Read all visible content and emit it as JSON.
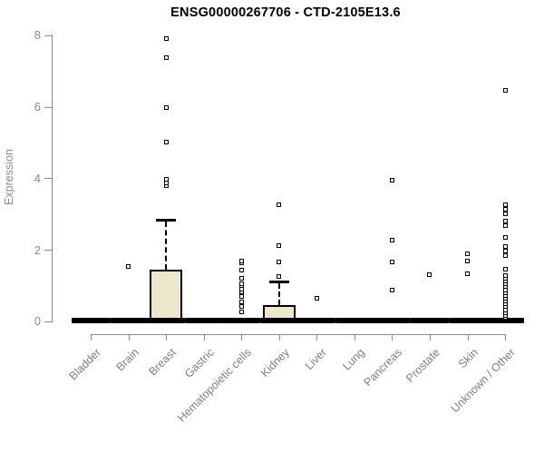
{
  "header": {
    "title": "ENSG00000267706 - CTD-2105E13.6"
  },
  "colors": {
    "box_fill": "#EDE8CC",
    "stroke": "#000000",
    "axis_gray": "#8b8b8b",
    "x_label_gray": "#7f7f7f",
    "background": "#ffffff"
  },
  "chart_data": {
    "type": "boxplot",
    "title": "ENSG00000267706 - CTD-2105E13.6",
    "xlabel": "",
    "ylabel": "Expression",
    "ylim": [
      0,
      8
    ],
    "yticks": [
      0,
      2,
      4,
      6,
      8
    ],
    "grid": false,
    "legend": false,
    "categories": [
      "Bladder",
      "Brain",
      "Breast",
      "Gastric",
      "Hematopoietic cells",
      "Kidney",
      "Liver",
      "Lung",
      "Pancreas",
      "Prostate",
      "Skin",
      "Unknown / Other"
    ],
    "series": [
      {
        "category": "Bladder",
        "q1": 0,
        "median": 0,
        "q3": 0,
        "whisker_low": 0,
        "whisker_high": 0,
        "outliers": []
      },
      {
        "category": "Brain",
        "q1": 0,
        "median": 0,
        "q3": 0,
        "whisker_low": 0,
        "whisker_high": 0,
        "outliers": [
          1.52
        ]
      },
      {
        "category": "Breast",
        "q1": 0,
        "median": 0,
        "q3": 1.45,
        "whisker_low": 0,
        "whisker_high": 2.83,
        "outliers": [
          3.8,
          3.88,
          3.96,
          5.01,
          5.97,
          7.38,
          7.9
        ]
      },
      {
        "category": "Gastric",
        "q1": 0,
        "median": 0,
        "q3": 0,
        "whisker_low": 0,
        "whisker_high": 0,
        "outliers": []
      },
      {
        "category": "Hematopoietic cells",
        "q1": 0,
        "median": 0,
        "q3": 0,
        "whisker_low": 0,
        "whisker_high": 0,
        "outliers": [
          0.27,
          0.4,
          0.55,
          0.69,
          0.82,
          0.9,
          0.99,
          1.05,
          1.2,
          1.43,
          1.63,
          1.68
        ]
      },
      {
        "category": "Kidney",
        "q1": 0,
        "median": 0,
        "q3": 0.44,
        "whisker_low": 0,
        "whisker_high": 1.11,
        "outliers": [
          1.24,
          1.65,
          2.11,
          3.25
        ]
      },
      {
        "category": "Liver",
        "q1": 0,
        "median": 0,
        "q3": 0,
        "whisker_low": 0,
        "whisker_high": 0,
        "outliers": [
          0.65
        ]
      },
      {
        "category": "Lung",
        "q1": 0,
        "median": 0,
        "q3": 0,
        "whisker_low": 0,
        "whisker_high": 0,
        "outliers": []
      },
      {
        "category": "Pancreas",
        "q1": 0,
        "median": 0,
        "q3": 0,
        "whisker_low": 0,
        "whisker_high": 0,
        "outliers": [
          0.86,
          1.66,
          2.26,
          3.95
        ]
      },
      {
        "category": "Prostate",
        "q1": 0,
        "median": 0,
        "q3": 0,
        "whisker_low": 0,
        "whisker_high": 0,
        "outliers": [
          1.3
        ]
      },
      {
        "category": "Skin",
        "q1": 0,
        "median": 0,
        "q3": 0,
        "whisker_low": 0,
        "whisker_high": 0,
        "outliers": [
          1.32,
          1.68,
          1.88
        ]
      },
      {
        "category": "Unknown / Other",
        "q1": 0,
        "median": 0,
        "q3": 0,
        "whisker_low": 0,
        "whisker_high": 0,
        "outliers": [
          0.1,
          0.16,
          0.24,
          0.32,
          0.4,
          0.48,
          0.56,
          0.64,
          0.72,
          0.8,
          0.88,
          0.96,
          1.04,
          1.12,
          1.2,
          1.28,
          1.45,
          1.84,
          1.96,
          2.08,
          2.34,
          2.68,
          2.8,
          3.01,
          3.14,
          3.27,
          6.45
        ]
      }
    ]
  }
}
